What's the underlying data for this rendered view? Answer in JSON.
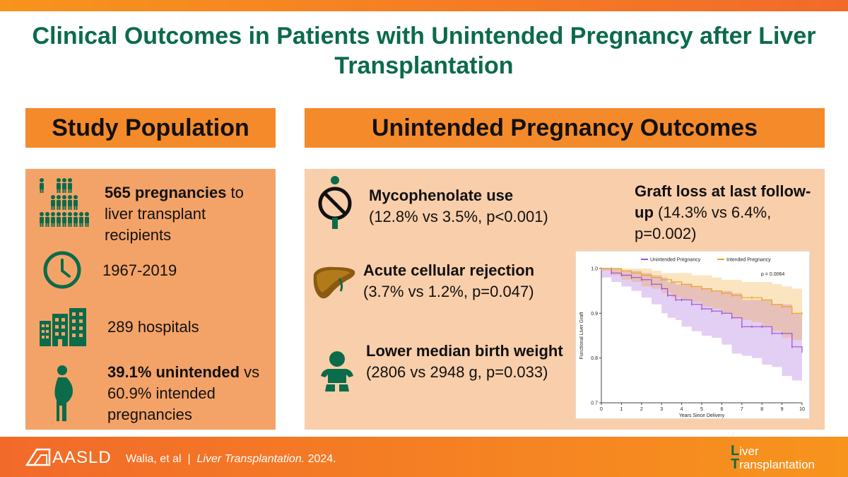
{
  "title": "Clinical Outcomes in Patients with Unintended Pregnancy after Liver Transplantation",
  "left_header": "Study Population",
  "right_header": "Unintended Pregnancy Outcomes",
  "population": {
    "pregnancies_bold": "565 pregnancies",
    "pregnancies_rest": " to liver transplant recipients",
    "years": "1967-2019",
    "hospitals": "289 hospitals",
    "unintended_bold": "39.1% unintended",
    "unintended_rest": " vs 60.9% intended pregnancies"
  },
  "outcomes": {
    "myco_bold": "Mycophenolate use",
    "myco_rest": "(12.8% vs 3.5%, p<0.001)",
    "acr_bold": "Acute cellular rejection",
    "acr_rest": "(3.7% vs 1.2%, p=0.047)",
    "bw_bold": "Lower median birth weight",
    "bw_rest": " (2806 vs 2948 g, p=0.033)",
    "graft_bold": "Graft loss at last follow-up",
    "graft_rest": " (14.3% vs 6.4%, p=0.002)"
  },
  "footer": {
    "logo": "AASLD",
    "authors": "Walia, et al",
    "separator": "|",
    "journal": "Liver Transplantation.",
    "year": "2024.",
    "journal_logo_line1_cap": "L",
    "journal_logo_line1_rest": "iver",
    "journal_logo_line2_cap": "T",
    "journal_logo_line2_rest": "ransplantation"
  },
  "colors": {
    "title_green": "#0b6b4a",
    "orange_header": "#f58a2a",
    "left_panel": "#f4a368",
    "right_panel": "#f9ceaa",
    "unintended": "#9b4fd6",
    "intended": "#f0a020"
  },
  "chart_data": {
    "type": "line",
    "title": "",
    "xlabel": "Years Since Delivery",
    "ylabel": "Functional Liver Graft",
    "xlim": [
      0,
      10
    ],
    "ylim": [
      0.7,
      1.0
    ],
    "x_ticks": [
      0,
      1,
      2,
      3,
      4,
      5,
      6,
      7,
      8,
      9,
      10
    ],
    "y_ticks": [
      0.7,
      0.8,
      0.9,
      1.0
    ],
    "legend_position": "top",
    "annotation": "p = 0.0064",
    "series": [
      {
        "name": "Unintended Pregnancy",
        "color": "#9b4fd6",
        "x": [
          0,
          0.5,
          1,
          1.5,
          2,
          2.5,
          3,
          3.3,
          3.7,
          4,
          4.5,
          5,
          5.5,
          6,
          6.5,
          7,
          7.5,
          8,
          8.5,
          9,
          9.5,
          10
        ],
        "y": [
          1.0,
          0.99,
          0.985,
          0.98,
          0.975,
          0.965,
          0.955,
          0.94,
          0.93,
          0.93,
          0.92,
          0.91,
          0.905,
          0.9,
          0.89,
          0.87,
          0.87,
          0.87,
          0.855,
          0.855,
          0.825,
          0.815
        ],
        "lower": [
          1.0,
          0.98,
          0.97,
          0.96,
          0.95,
          0.935,
          0.92,
          0.9,
          0.89,
          0.885,
          0.87,
          0.86,
          0.85,
          0.845,
          0.83,
          0.81,
          0.805,
          0.8,
          0.785,
          0.78,
          0.76,
          0.75
        ],
        "upper": [
          1.0,
          1.0,
          0.995,
          0.995,
          0.99,
          0.985,
          0.98,
          0.97,
          0.965,
          0.965,
          0.96,
          0.955,
          0.95,
          0.95,
          0.945,
          0.93,
          0.93,
          0.93,
          0.92,
          0.92,
          0.9,
          0.895
        ]
      },
      {
        "name": "Intended Pregnancy",
        "color": "#f0a020",
        "x": [
          0,
          0.5,
          1,
          1.5,
          2,
          2.5,
          3,
          3.5,
          4,
          4.5,
          5,
          5.5,
          6,
          6.5,
          7,
          7.5,
          8,
          8.5,
          9,
          9.5,
          10
        ],
        "y": [
          1.0,
          1.0,
          0.995,
          0.99,
          0.985,
          0.98,
          0.975,
          0.97,
          0.965,
          0.96,
          0.955,
          0.95,
          0.945,
          0.94,
          0.935,
          0.935,
          0.93,
          0.92,
          0.915,
          0.9,
          0.9
        ],
        "lower": [
          1.0,
          0.995,
          0.985,
          0.975,
          0.97,
          0.96,
          0.955,
          0.945,
          0.935,
          0.93,
          0.925,
          0.915,
          0.91,
          0.9,
          0.89,
          0.885,
          0.88,
          0.87,
          0.86,
          0.845,
          0.84
        ],
        "upper": [
          1.0,
          1.0,
          1.0,
          1.0,
          1.0,
          0.995,
          0.99,
          0.99,
          0.99,
          0.985,
          0.985,
          0.98,
          0.975,
          0.975,
          0.97,
          0.97,
          0.97,
          0.965,
          0.96,
          0.955,
          0.955
        ]
      }
    ]
  }
}
